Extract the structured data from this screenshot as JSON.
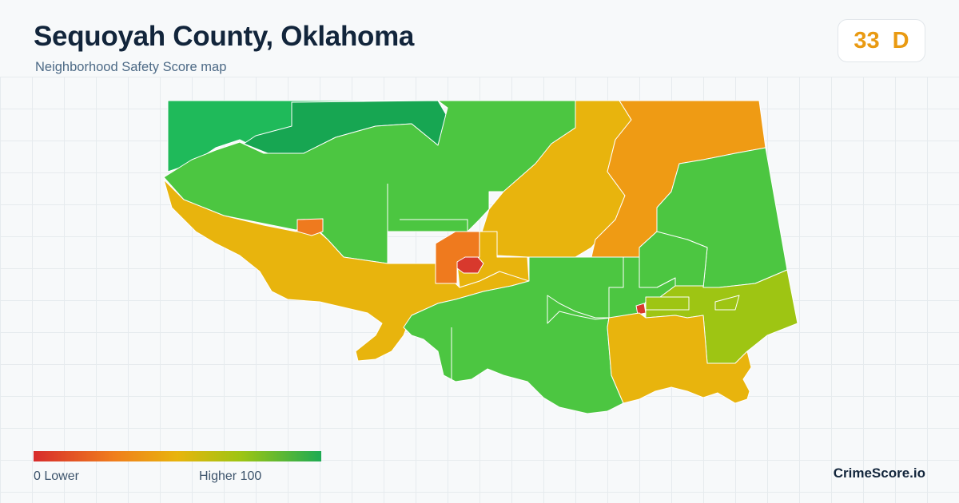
{
  "header": {
    "title": "Sequoyah County, Oklahoma",
    "subtitle": "Neighborhood Safety Score map"
  },
  "score": {
    "value": "33",
    "grade": "D",
    "color": "#e99a12"
  },
  "legend": {
    "low_label": "0  Lower",
    "high_label": "Higher  100",
    "colors": [
      "#d72c2c",
      "#f07e1d",
      "#e8b40d",
      "#9ec513",
      "#1eab53"
    ]
  },
  "footer": {
    "brand": "CrimeScore.io"
  },
  "palette": {
    "dark_green": "#17a652",
    "green": "#1fba5a",
    "light_green": "#4cc641",
    "yellow_green": "#9ec513",
    "yellow": "#e8b40d",
    "orange": "#ef9b14",
    "dark_orange": "#ef7a1e",
    "red": "#d8392d"
  }
}
